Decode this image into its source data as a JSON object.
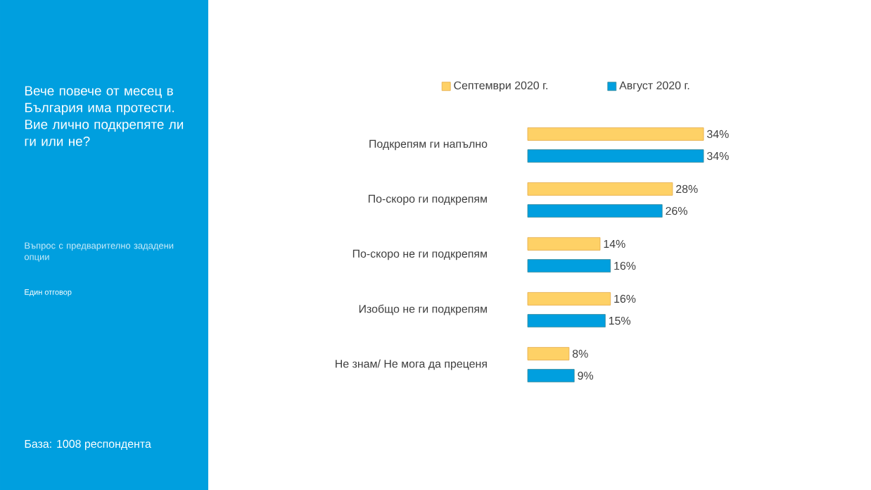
{
  "chart_data": {
    "type": "bar",
    "orientation": "horizontal",
    "title": "Вече повече от месец в България има протести. Вие лично подкрепяте ли ги или не?",
    "subtitle": "Въпрос с предварително зададени опции",
    "annotations": [
      "Един отговор",
      "База: 1008 респондента"
    ],
    "categories": [
      "Подкрепям ги напълно",
      "По-скоро ги подкрепям",
      "По-скоро не ги подкрепям",
      "Изобщо не ги подкрепям",
      "Не знам/ Не мога да преценя"
    ],
    "series": [
      {
        "name": "Септември 2020 г.",
        "color": "#fed166",
        "values": [
          34,
          28,
          14,
          16,
          8
        ],
        "value_labels": [
          "34%",
          "28%",
          "14%",
          "16%",
          "8%"
        ]
      },
      {
        "name": "Август 2020 г.",
        "color": "#009fdf",
        "values": [
          34,
          26,
          16,
          15,
          9
        ],
        "value_labels": [
          "34%",
          "26%",
          "16%",
          "15%",
          "9%"
        ]
      }
    ],
    "legend": "top"
  }
}
